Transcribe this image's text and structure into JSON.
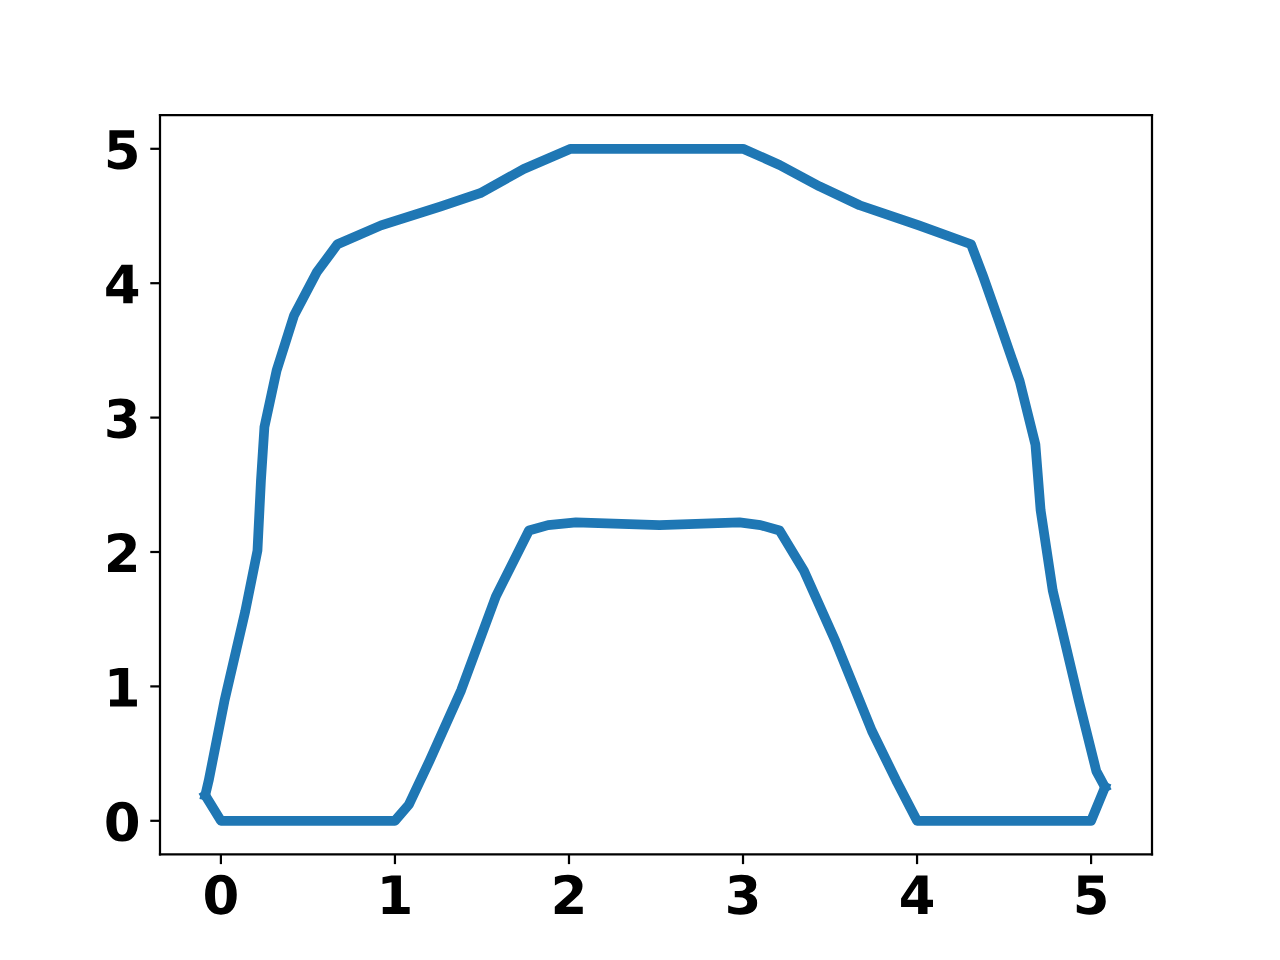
{
  "chart_data": {
    "type": "line",
    "series": [
      {
        "color": "#1f77b4",
        "x": [
          -0.09,
          0,
          1,
          1.08,
          1.2,
          1.38,
          1.58,
          1.77,
          1.88,
          2.04,
          2.52,
          2.98,
          3.1,
          3.21,
          3.35,
          3.53,
          3.74,
          3.88,
          4.0,
          5.0,
          5.08
        ],
        "values": [
          0.19,
          0,
          0,
          0.12,
          0.45,
          0.97,
          1.67,
          2.16,
          2.2,
          2.22,
          2.2,
          2.22,
          2.2,
          2.16,
          1.86,
          1.34,
          0.67,
          0.3,
          0,
          0,
          0.25
        ]
      },
      {
        "color": "#1f77b4",
        "x": [
          5.08,
          5.03,
          4.93,
          4.78,
          4.71,
          4.68,
          4.59,
          4.47,
          4.38,
          4.31,
          4.01,
          3.67,
          3.44,
          3.21,
          3.0,
          2.01,
          1.74,
          1.49,
          1.26,
          0.92,
          0.67,
          0.55,
          0.42,
          0.32,
          0.25,
          0.23,
          0.21,
          0.14,
          0.02,
          -0.07,
          -0.09
        ],
        "values": [
          0.25,
          0.37,
          0.89,
          1.71,
          2.31,
          2.8,
          3.27,
          3.72,
          4.05,
          4.29,
          4.43,
          4.58,
          4.72,
          4.88,
          5.0,
          5.0,
          4.85,
          4.67,
          4.57,
          4.43,
          4.29,
          4.08,
          3.76,
          3.35,
          2.93,
          2.53,
          2.01,
          1.56,
          0.89,
          0.3,
          0.19
        ]
      }
    ],
    "xlim": [
      -0.35,
      5.35
    ],
    "ylim": [
      -0.25,
      5.25
    ],
    "xticks": [
      0,
      1,
      2,
      3,
      4,
      5
    ],
    "yticks": [
      0,
      1,
      2,
      3,
      4,
      5
    ],
    "grid": false,
    "legend": false,
    "marker": "none",
    "line_style": "solid"
  }
}
